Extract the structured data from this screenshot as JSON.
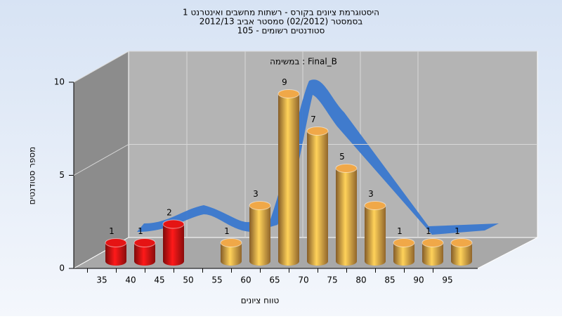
{
  "chart_data": {
    "type": "bar3d",
    "title": [
      "היסטוגרמת ציונים בקורס - רשתות מחשבים ואינטרנט 1",
      "בסמסטר  (02/2012)  סמסטר אביב 2012/13",
      "סטודנטים רשומים - 105"
    ],
    "annotation": "במשימה : Final_B",
    "x_label": "טווח ציונים",
    "y_label": "מספר סטודנטים",
    "categories": [
      "35",
      "40",
      "45",
      "50",
      "55",
      "60",
      "65",
      "70",
      "75",
      "80",
      "85",
      "90",
      "95"
    ],
    "values": [
      1,
      1,
      2,
      null,
      1,
      3,
      9,
      7,
      5,
      3,
      1,
      1,
      1
    ],
    "colors": [
      "#e51414",
      "#e51414",
      "#e51414",
      "#f0a848",
      "#f0a848",
      "#f0a848",
      "#f0a848",
      "#f0a848",
      "#f0a848",
      "#f0a848",
      "#f0a848",
      "#f0a848",
      "#f0a848"
    ],
    "ylim": [
      0,
      10
    ],
    "yticks": [
      0,
      5,
      10
    ],
    "grid": true
  }
}
